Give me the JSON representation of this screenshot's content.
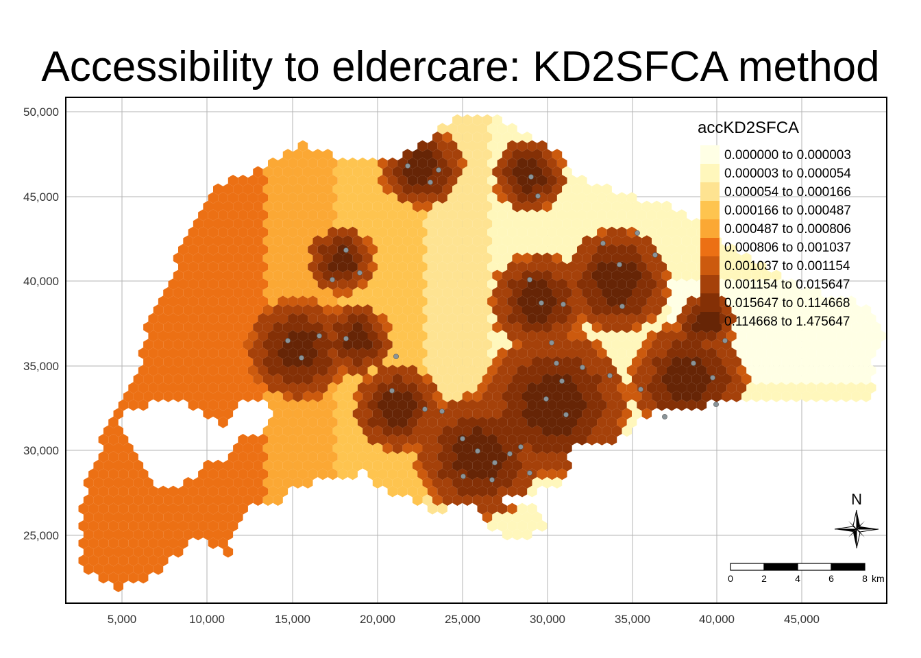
{
  "title": "Accessibility to eldercare: KD2SFCA method",
  "x_ticks": [
    "5,000",
    "10,000",
    "15,000",
    "20,000",
    "25,000",
    "30,000",
    "35,000",
    "40,000",
    "45,000"
  ],
  "y_ticks": [
    "50,000",
    "45,000",
    "40,000",
    "35,000",
    "30,000",
    "25,000"
  ],
  "legend": {
    "title": "accKD2SFCA",
    "classes": [
      {
        "label": "0.000000 to 0.000003",
        "color": "#FFFFE5"
      },
      {
        "label": "0.000003 to 0.000054",
        "color": "#FFF7BC"
      },
      {
        "label": "0.000054 to 0.000166",
        "color": "#FEE391"
      },
      {
        "label": "0.000166 to 0.000487",
        "color": "#FEC44F"
      },
      {
        "label": "0.000487 to 0.000806",
        "color": "#FBA834"
      },
      {
        "label": "0.000806 to 0.001037",
        "color": "#EC7014"
      },
      {
        "label": "0.001037 to 0.001154",
        "color": "#CC5A0E"
      },
      {
        "label": "0.001154 to 0.015647",
        "color": "#A5410A"
      },
      {
        "label": "0.015647 to 0.114668",
        "color": "#843006"
      },
      {
        "label": "0.114668 to 1.475647",
        "color": "#662506"
      }
    ]
  },
  "north_arrow": {
    "label": "N"
  },
  "scale_bar": {
    "labels": [
      "0",
      "2",
      "4",
      "6",
      "8"
    ],
    "unit": "km"
  },
  "point_color": "#8a9499",
  "chart_data": {
    "type": "heatmap",
    "title": "Accessibility to eldercare: KD2SFCA method",
    "xlim": [
      2500,
      50000
    ],
    "ylim": [
      21000,
      50500
    ],
    "grid": true,
    "legend_position": "top-right"
  }
}
